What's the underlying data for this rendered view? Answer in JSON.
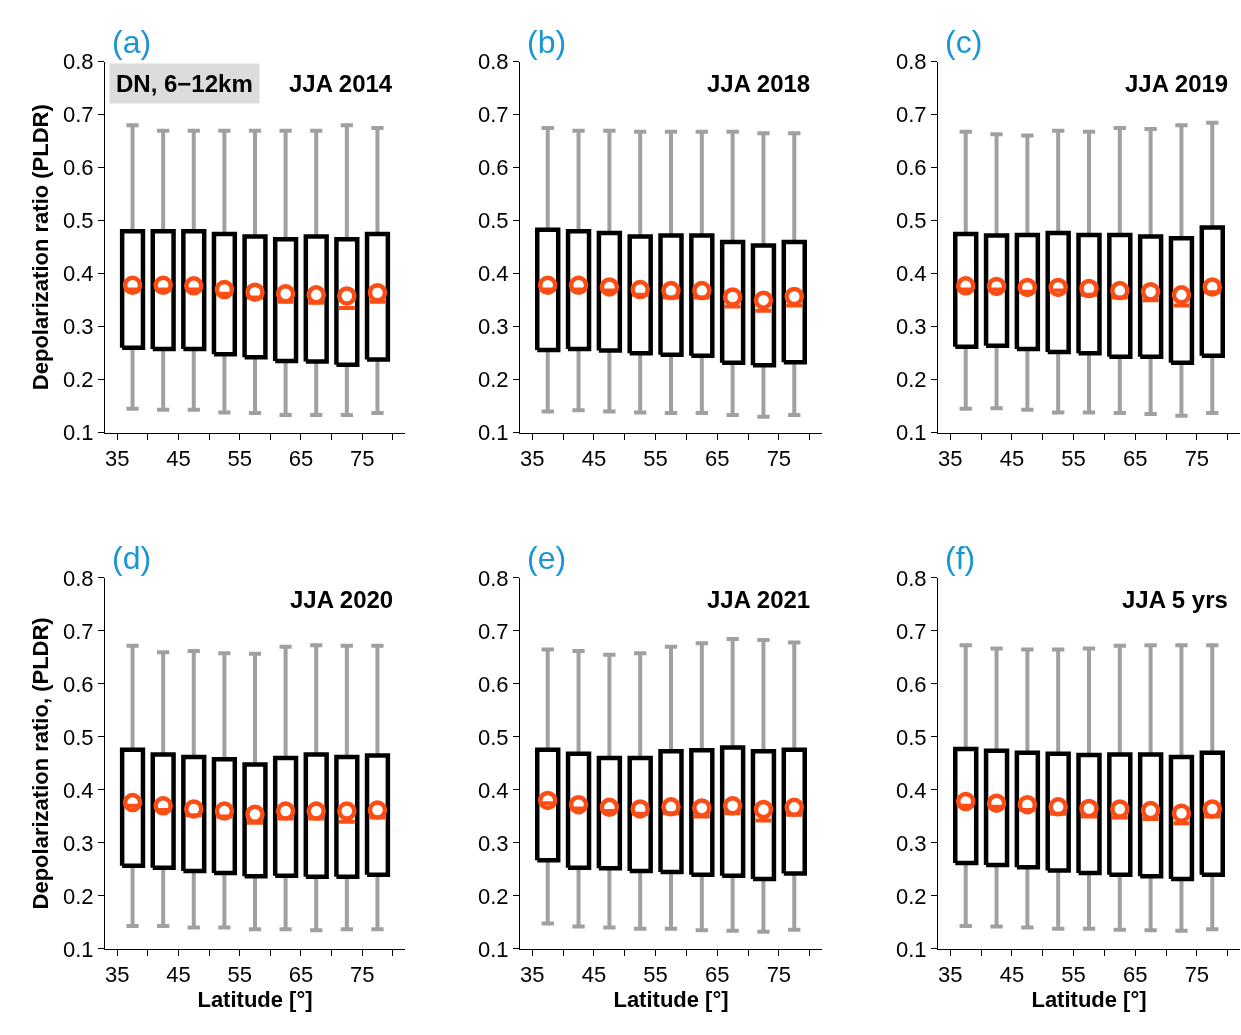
{
  "chart_data": [
    {
      "type": "box",
      "title": "JJA 2014",
      "annotations": [
        "(a)",
        "DN, 6−12km"
      ],
      "ylabel": "Depolarization ratio (PLDR)",
      "x": [
        37.5,
        42.5,
        47.5,
        52.5,
        57.5,
        62.5,
        67.5,
        72.5,
        77.5
      ],
      "xlim": [
        33,
        82
      ],
      "xticks": [
        35,
        {
          "value": 40,
          "label": null
        },
        45,
        {
          "value": 50,
          "label": null
        },
        55,
        {
          "value": 60,
          "label": null
        },
        65,
        {
          "value": 70,
          "label": null
        },
        75,
        {
          "value": 80,
          "label": null
        }
      ],
      "ylim": [
        0.1,
        0.8
      ],
      "yticks": [
        0.1,
        0.2,
        0.3,
        0.4,
        0.5,
        0.6,
        0.7,
        0.8
      ],
      "color": "#000000",
      "marker": "circle",
      "boxes": [
        {
          "low": 0.145,
          "q1": 0.26,
          "median": 0.37,
          "q3": 0.48,
          "high": 0.68,
          "mean": 0.378
        },
        {
          "low": 0.143,
          "q1": 0.258,
          "median": 0.37,
          "q3": 0.48,
          "high": 0.67,
          "mean": 0.378
        },
        {
          "low": 0.143,
          "q1": 0.258,
          "median": 0.37,
          "q3": 0.48,
          "high": 0.67,
          "mean": 0.377
        },
        {
          "low": 0.138,
          "q1": 0.248,
          "median": 0.362,
          "q3": 0.475,
          "high": 0.67,
          "mean": 0.37
        },
        {
          "low": 0.137,
          "q1": 0.242,
          "median": 0.355,
          "q3": 0.47,
          "high": 0.67,
          "mean": 0.365
        },
        {
          "low": 0.133,
          "q1": 0.235,
          "median": 0.347,
          "q3": 0.465,
          "high": 0.67,
          "mean": 0.362
        },
        {
          "low": 0.133,
          "q1": 0.234,
          "median": 0.345,
          "q3": 0.47,
          "high": 0.67,
          "mean": 0.36
        },
        {
          "low": 0.133,
          "q1": 0.228,
          "median": 0.335,
          "q3": 0.465,
          "high": 0.68,
          "mean": 0.358
        },
        {
          "low": 0.137,
          "q1": 0.238,
          "median": 0.347,
          "q3": 0.475,
          "high": 0.675,
          "mean": 0.364
        }
      ]
    },
    {
      "type": "box",
      "title": "JJA 2018",
      "annotations": [
        "(b)"
      ],
      "x": [
        37.5,
        42.5,
        47.5,
        52.5,
        57.5,
        62.5,
        67.5,
        72.5,
        77.5
      ],
      "xlim": [
        33,
        82
      ],
      "xticks": [
        35,
        {
          "value": 40,
          "label": null
        },
        45,
        {
          "value": 50,
          "label": null
        },
        55,
        {
          "value": 60,
          "label": null
        },
        65,
        {
          "value": 70,
          "label": null
        },
        75,
        {
          "value": 80,
          "label": null
        }
      ],
      "ylim": [
        0.1,
        0.8
      ],
      "yticks": [
        0.1,
        0.2,
        0.3,
        0.4,
        0.5,
        0.6,
        0.7,
        0.8
      ],
      "color": "#000000",
      "marker": "circle",
      "boxes": [
        {
          "low": 0.14,
          "q1": 0.256,
          "median": 0.37,
          "q3": 0.483,
          "high": 0.675,
          "mean": 0.378
        },
        {
          "low": 0.142,
          "q1": 0.258,
          "median": 0.37,
          "q3": 0.48,
          "high": 0.67,
          "mean": 0.378
        },
        {
          "low": 0.14,
          "q1": 0.255,
          "median": 0.368,
          "q3": 0.477,
          "high": 0.67,
          "mean": 0.375
        },
        {
          "low": 0.138,
          "q1": 0.25,
          "median": 0.36,
          "q3": 0.47,
          "high": 0.668,
          "mean": 0.37
        },
        {
          "low": 0.137,
          "q1": 0.247,
          "median": 0.355,
          "q3": 0.472,
          "high": 0.668,
          "mean": 0.368
        },
        {
          "low": 0.137,
          "q1": 0.245,
          "median": 0.355,
          "q3": 0.472,
          "high": 0.668,
          "mean": 0.368
        },
        {
          "low": 0.133,
          "q1": 0.232,
          "median": 0.338,
          "q3": 0.46,
          "high": 0.668,
          "mean": 0.356
        },
        {
          "low": 0.13,
          "q1": 0.227,
          "median": 0.33,
          "q3": 0.453,
          "high": 0.665,
          "mean": 0.35
        },
        {
          "low": 0.133,
          "q1": 0.233,
          "median": 0.34,
          "q3": 0.46,
          "high": 0.665,
          "mean": 0.357
        }
      ]
    },
    {
      "type": "box",
      "title": "JJA 2019",
      "annotations": [
        "(c)"
      ],
      "x": [
        37.5,
        42.5,
        47.5,
        52.5,
        57.5,
        62.5,
        67.5,
        72.5,
        77.5
      ],
      "xlim": [
        33,
        82
      ],
      "xticks": [
        35,
        {
          "value": 40,
          "label": null
        },
        45,
        {
          "value": 50,
          "label": null
        },
        55,
        {
          "value": 60,
          "label": null
        },
        65,
        {
          "value": 70,
          "label": null
        },
        75,
        {
          "value": 80,
          "label": null
        }
      ],
      "ylim": [
        0.1,
        0.8
      ],
      "yticks": [
        0.1,
        0.2,
        0.3,
        0.4,
        0.5,
        0.6,
        0.7,
        0.8
      ],
      "color": "#000000",
      "marker": "circle",
      "boxes": [
        {
          "low": 0.145,
          "q1": 0.262,
          "median": 0.37,
          "q3": 0.475,
          "high": 0.668,
          "mean": 0.377
        },
        {
          "low": 0.146,
          "q1": 0.264,
          "median": 0.37,
          "q3": 0.472,
          "high": 0.663,
          "mean": 0.376
        },
        {
          "low": 0.143,
          "q1": 0.258,
          "median": 0.366,
          "q3": 0.473,
          "high": 0.661,
          "mean": 0.374
        },
        {
          "low": 0.138,
          "q1": 0.252,
          "median": 0.368,
          "q3": 0.477,
          "high": 0.67,
          "mean": 0.374
        },
        {
          "low": 0.138,
          "q1": 0.25,
          "median": 0.36,
          "q3": 0.473,
          "high": 0.668,
          "mean": 0.372
        },
        {
          "low": 0.137,
          "q1": 0.243,
          "median": 0.355,
          "q3": 0.473,
          "high": 0.675,
          "mean": 0.368
        },
        {
          "low": 0.135,
          "q1": 0.243,
          "median": 0.35,
          "q3": 0.47,
          "high": 0.673,
          "mean": 0.366
        },
        {
          "low": 0.132,
          "q1": 0.232,
          "median": 0.34,
          "q3": 0.467,
          "high": 0.68,
          "mean": 0.36
        },
        {
          "low": 0.137,
          "q1": 0.245,
          "median": 0.365,
          "q3": 0.487,
          "high": 0.685,
          "mean": 0.375
        }
      ]
    },
    {
      "type": "box",
      "title": "JJA 2020",
      "annotations": [
        "(d)"
      ],
      "ylabel": "Depolarization ratio, (PLDR)",
      "xlabel": "Latitude [°]",
      "x": [
        37.5,
        42.5,
        47.5,
        52.5,
        57.5,
        62.5,
        67.5,
        72.5,
        77.5
      ],
      "xlim": [
        33,
        82
      ],
      "xticks": [
        35,
        {
          "value": 40,
          "label": null
        },
        45,
        {
          "value": 50,
          "label": null
        },
        55,
        {
          "value": 60,
          "label": null
        },
        65,
        {
          "value": 70,
          "label": null
        },
        75,
        {
          "value": 80,
          "label": null
        }
      ],
      "ylim": [
        0.1,
        0.8
      ],
      "yticks": [
        0.1,
        0.2,
        0.3,
        0.4,
        0.5,
        0.6,
        0.7,
        0.8
      ],
      "color": "#000000",
      "marker": "circle",
      "boxes": [
        {
          "low": 0.143,
          "q1": 0.257,
          "median": 0.37,
          "q3": 0.476,
          "high": 0.672,
          "mean": 0.376
        },
        {
          "low": 0.143,
          "q1": 0.253,
          "median": 0.362,
          "q3": 0.467,
          "high": 0.66,
          "mean": 0.37
        },
        {
          "low": 0.14,
          "q1": 0.247,
          "median": 0.352,
          "q3": 0.462,
          "high": 0.662,
          "mean": 0.364
        },
        {
          "low": 0.14,
          "q1": 0.243,
          "median": 0.35,
          "q3": 0.458,
          "high": 0.658,
          "mean": 0.36
        },
        {
          "low": 0.137,
          "q1": 0.237,
          "median": 0.338,
          "q3": 0.448,
          "high": 0.657,
          "mean": 0.354
        },
        {
          "low": 0.137,
          "q1": 0.238,
          "median": 0.346,
          "q3": 0.46,
          "high": 0.67,
          "mean": 0.36
        },
        {
          "low": 0.135,
          "q1": 0.236,
          "median": 0.346,
          "q3": 0.467,
          "high": 0.673,
          "mean": 0.36
        },
        {
          "low": 0.137,
          "q1": 0.236,
          "median": 0.34,
          "q3": 0.462,
          "high": 0.672,
          "mean": 0.36
        },
        {
          "low": 0.137,
          "q1": 0.24,
          "median": 0.348,
          "q3": 0.465,
          "high": 0.672,
          "mean": 0.362
        }
      ]
    },
    {
      "type": "box",
      "title": "JJA 2021",
      "annotations": [
        "(e)"
      ],
      "xlabel": "Latitude [°]",
      "x": [
        37.5,
        42.5,
        47.5,
        52.5,
        57.5,
        62.5,
        67.5,
        72.5,
        77.5
      ],
      "xlim": [
        33,
        82
      ],
      "xticks": [
        35,
        {
          "value": 40,
          "label": null
        },
        45,
        {
          "value": 50,
          "label": null
        },
        55,
        {
          "value": 60,
          "label": null
        },
        65,
        {
          "value": 70,
          "label": null
        },
        75,
        {
          "value": 80,
          "label": null
        }
      ],
      "ylim": [
        0.1,
        0.8
      ],
      "yticks": [
        0.1,
        0.2,
        0.3,
        0.4,
        0.5,
        0.6,
        0.7,
        0.8
      ],
      "color": "#000000",
      "marker": "circle",
      "boxes": [
        {
          "low": 0.148,
          "q1": 0.267,
          "median": 0.375,
          "q3": 0.476,
          "high": 0.665,
          "mean": 0.38
        },
        {
          "low": 0.142,
          "q1": 0.253,
          "median": 0.365,
          "q3": 0.468,
          "high": 0.662,
          "mean": 0.372
        },
        {
          "low": 0.14,
          "q1": 0.252,
          "median": 0.36,
          "q3": 0.46,
          "high": 0.655,
          "mean": 0.367
        },
        {
          "low": 0.138,
          "q1": 0.247,
          "median": 0.355,
          "q3": 0.46,
          "high": 0.658,
          "mean": 0.364
        },
        {
          "low": 0.138,
          "q1": 0.245,
          "median": 0.356,
          "q3": 0.473,
          "high": 0.67,
          "mean": 0.368
        },
        {
          "low": 0.135,
          "q1": 0.24,
          "median": 0.35,
          "q3": 0.475,
          "high": 0.677,
          "mean": 0.366
        },
        {
          "low": 0.134,
          "q1": 0.238,
          "median": 0.356,
          "q3": 0.48,
          "high": 0.685,
          "mean": 0.37
        },
        {
          "low": 0.132,
          "q1": 0.232,
          "median": 0.342,
          "q3": 0.473,
          "high": 0.683,
          "mean": 0.363
        },
        {
          "low": 0.136,
          "q1": 0.242,
          "median": 0.353,
          "q3": 0.476,
          "high": 0.678,
          "mean": 0.367
        }
      ]
    },
    {
      "type": "box",
      "title": "JJA 5 yrs",
      "annotations": [
        "(f)"
      ],
      "xlabel": "Latitude [°]",
      "x": [
        37.5,
        42.5,
        47.5,
        52.5,
        57.5,
        62.5,
        67.5,
        72.5,
        77.5
      ],
      "xlim": [
        33,
        82
      ],
      "xticks": [
        35,
        {
          "value": 40,
          "label": null
        },
        45,
        {
          "value": 50,
          "label": null
        },
        55,
        {
          "value": 60,
          "label": null
        },
        65,
        {
          "value": 70,
          "label": null
        },
        75,
        {
          "value": 80,
          "label": null
        }
      ],
      "ylim": [
        0.1,
        0.8
      ],
      "yticks": [
        0.1,
        0.2,
        0.3,
        0.4,
        0.5,
        0.6,
        0.7,
        0.8
      ],
      "color": "#000000",
      "marker": "circle",
      "boxes": [
        {
          "low": 0.143,
          "q1": 0.262,
          "median": 0.37,
          "q3": 0.477,
          "high": 0.673,
          "mean": 0.378
        },
        {
          "low": 0.142,
          "q1": 0.258,
          "median": 0.368,
          "q3": 0.474,
          "high": 0.667,
          "mean": 0.375
        },
        {
          "low": 0.14,
          "q1": 0.254,
          "median": 0.362,
          "q3": 0.47,
          "high": 0.665,
          "mean": 0.372
        },
        {
          "low": 0.138,
          "q1": 0.248,
          "median": 0.355,
          "q3": 0.468,
          "high": 0.665,
          "mean": 0.368
        },
        {
          "low": 0.138,
          "q1": 0.243,
          "median": 0.35,
          "q3": 0.466,
          "high": 0.667,
          "mean": 0.365
        },
        {
          "low": 0.136,
          "q1": 0.24,
          "median": 0.348,
          "q3": 0.467,
          "high": 0.672,
          "mean": 0.364
        },
        {
          "low": 0.135,
          "q1": 0.237,
          "median": 0.345,
          "q3": 0.467,
          "high": 0.673,
          "mean": 0.361
        },
        {
          "low": 0.134,
          "q1": 0.232,
          "median": 0.337,
          "q3": 0.462,
          "high": 0.673,
          "mean": 0.356
        },
        {
          "low": 0.137,
          "q1": 0.24,
          "median": 0.35,
          "q3": 0.47,
          "high": 0.673,
          "mean": 0.364
        }
      ]
    }
  ]
}
